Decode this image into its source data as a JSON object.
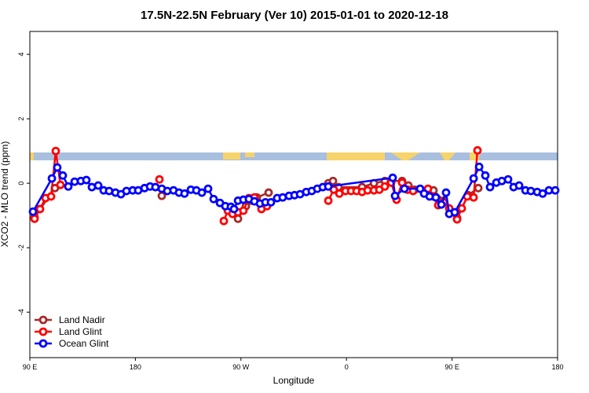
{
  "chart_data": {
    "type": "line",
    "title": "17.5N-22.5N February (Ver 10)   2015-01-01 to 2020-12-18",
    "x_label": "Longitude",
    "y_label": "XCO2 - MLO trend (ppm)",
    "xlim": [
      90,
      540
    ],
    "ylim": [
      -5.41,
      4.71
    ],
    "xticks": [
      {
        "value": 90,
        "label": "90 E"
      },
      {
        "value": 180,
        "label": "180"
      },
      {
        "value": 270,
        "label": "90 W"
      },
      {
        "value": 360,
        "label": "0"
      },
      {
        "value": 450,
        "label": "90 E"
      },
      {
        "value": 540,
        "label": "180"
      }
    ],
    "yticks": [
      -4,
      -2,
      0,
      2,
      4
    ],
    "legend": "bottom-left",
    "series": [
      {
        "name": "Land Nadir",
        "color": "#a52a2a",
        "x": [
          94,
          111.4,
          null,
          202.5,
          null,
          267.5,
          274.2,
          278.9,
          283.5,
          293.6,
          null,
          344.5,
          348.5,
          353.2,
          373.3,
          383.4,
          392.7,
          407.4,
          412.8,
          418.1,
          434.2,
          442.9,
          454.3,
          463.7,
          472.4
        ],
        "values": [
          -1.05,
          -0.15,
          null,
          -0.39,
          null,
          -1.1,
          -0.71,
          -0.54,
          -0.44,
          -0.29,
          null,
          0.0,
          0.07,
          -0.12,
          -0.12,
          0.0,
          0.07,
          0.07,
          -0.07,
          -0.2,
          -0.22,
          -0.54,
          -1.07,
          -0.37,
          -0.15
        ]
      },
      {
        "name": "Land Glint",
        "color": "#ff0000",
        "x": [
          94,
          98.7,
          103.4,
          108.1,
          112.1,
          116.1,
          null,
          200.5,
          null,
          255.4,
          258.8,
          262.8,
          267.5,
          272.1,
          276.8,
          281.5,
          287.5,
          292.2,
          null,
          344.5,
          349.2,
          353.9,
          359.2,
          363.9,
          368.6,
          373.3,
          378.0,
          383.4,
          388.0,
          392.7,
          398.1,
          402.7,
          407.4,
          412.1,
          416.8,
          429.5,
          434.2,
          438.2,
          442.9,
          447.6,
          454.3,
          458.3,
          463.0,
          468.4,
          471.7
        ],
        "values": [
          -1.1,
          -0.8,
          -0.46,
          -0.41,
          1.0,
          -0.05,
          null,
          0.12,
          null,
          -1.17,
          -0.85,
          -0.95,
          -0.9,
          -0.85,
          -0.46,
          -0.44,
          -0.8,
          -0.71,
          null,
          -0.54,
          -0.2,
          -0.32,
          -0.24,
          -0.24,
          -0.24,
          -0.27,
          -0.22,
          -0.22,
          -0.2,
          -0.1,
          0.02,
          -0.51,
          0.02,
          -0.2,
          -0.24,
          -0.17,
          -0.41,
          -0.68,
          -0.59,
          -0.78,
          -1.12,
          -0.78,
          -0.41,
          -0.44,
          1.02
        ]
      },
      {
        "name": "Ocean Glint",
        "color": "#0000ff",
        "x": [
          92.7,
          108.8,
          113.4,
          118.1,
          122.8,
          128.2,
          133.5,
          138.2,
          142.9,
          148.3,
          152.9,
          157.6,
          163.0,
          167.7,
          172.4,
          177.7,
          182.4,
          187.8,
          192.5,
          197.1,
          202.5,
          207.2,
          212.5,
          217.2,
          221.9,
          227.3,
          232.0,
          236.7,
          242.0,
          246.7,
          252.1,
          256.7,
          261.4,
          264.1,
          267.5,
          272.1,
          276.8,
          281.5,
          286.2,
          290.9,
          295.6,
          300.9,
          305.6,
          311.0,
          315.7,
          320.4,
          325.7,
          330.4,
          335.1,
          339.8,
          344.5,
          399.4,
          401.4,
          409.4,
          422.8,
          426.2,
          430.9,
          436.2,
          440.9,
          444.9,
          447.6,
          452.3,
          468.4,
          473.1,
          478.4,
          482.4,
          487.8,
          492.5,
          497.8,
          502.5,
          507.2,
          512.6,
          517.2,
          522.6,
          527.3,
          532.6,
          538.0
        ],
        "values": [
          -0.88,
          0.15,
          0.49,
          0.24,
          -0.1,
          0.05,
          0.07,
          0.1,
          -0.12,
          -0.07,
          -0.22,
          -0.24,
          -0.29,
          -0.34,
          -0.24,
          -0.22,
          -0.22,
          -0.15,
          -0.1,
          -0.12,
          -0.17,
          -0.24,
          -0.22,
          -0.29,
          -0.32,
          -0.2,
          -0.22,
          -0.29,
          -0.17,
          -0.49,
          -0.61,
          -0.71,
          -0.73,
          -0.8,
          -0.54,
          -0.51,
          -0.49,
          -0.56,
          -0.63,
          -0.59,
          -0.59,
          -0.46,
          -0.44,
          -0.39,
          -0.37,
          -0.34,
          -0.27,
          -0.24,
          -0.17,
          -0.12,
          -0.1,
          0.17,
          -0.39,
          -0.17,
          -0.17,
          -0.32,
          -0.41,
          -0.44,
          -0.66,
          -0.29,
          -0.95,
          -0.9,
          0.15,
          0.51,
          0.24,
          -0.12,
          0.02,
          0.07,
          0.12,
          -0.12,
          -0.07,
          -0.22,
          -0.24,
          -0.27,
          -0.32,
          -0.22,
          -0.22
        ]
      }
    ]
  }
}
